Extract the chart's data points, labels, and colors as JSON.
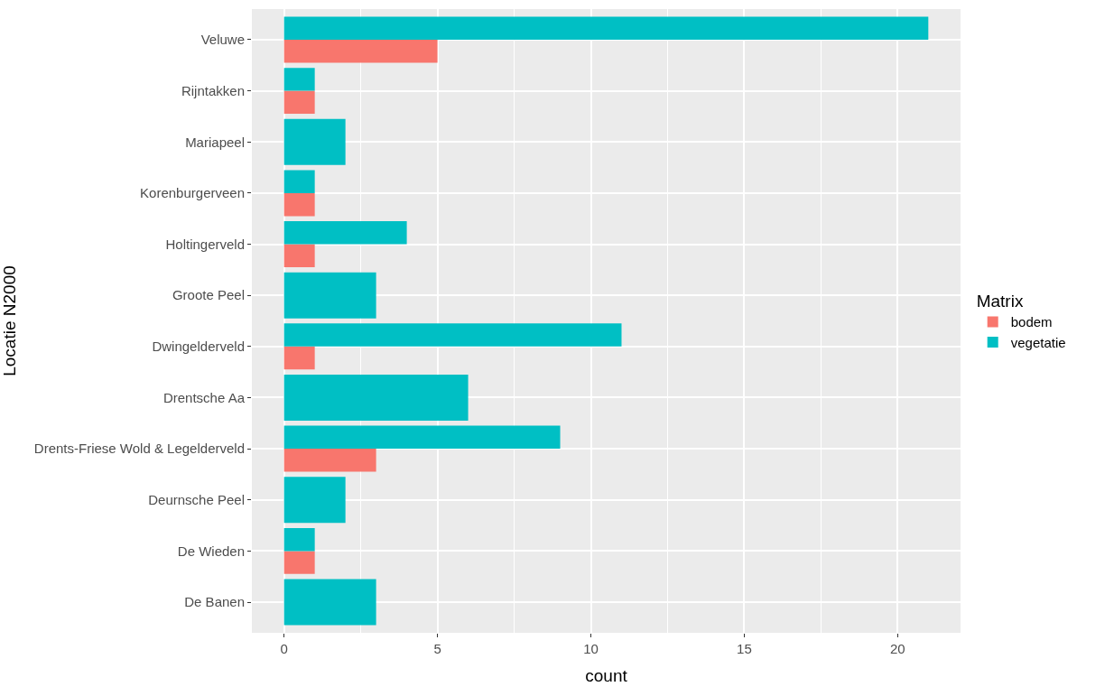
{
  "chart_data": {
    "type": "bar",
    "orientation": "horizontal",
    "xlabel": "count",
    "ylabel": "Locatie N2000",
    "legend_title": "Matrix",
    "legend": "right",
    "grid": true,
    "categories": [
      "Veluwe",
      "Rijntakken",
      "Mariapeel",
      "Korenburgerveen",
      "Holtingerveld",
      "Groote Peel",
      "Dwingelderveld",
      "Drentsche Aa",
      "Drents-Friese Wold & Legelderveld",
      "Deurnsche Peel",
      "De Wieden",
      "De Banen"
    ],
    "series": [
      {
        "name": "bodem",
        "color": "#f8766d",
        "values": [
          5,
          1,
          null,
          1,
          1,
          null,
          1,
          null,
          3,
          null,
          1,
          null
        ]
      },
      {
        "name": "vegetatie",
        "color": "#00bfc4",
        "values": [
          21,
          1,
          2,
          1,
          4,
          3,
          11,
          6,
          9,
          2,
          1,
          3
        ]
      }
    ],
    "xlim": [
      -1.05,
      22.05
    ],
    "xticks": [
      0,
      5,
      10,
      15,
      20
    ]
  }
}
